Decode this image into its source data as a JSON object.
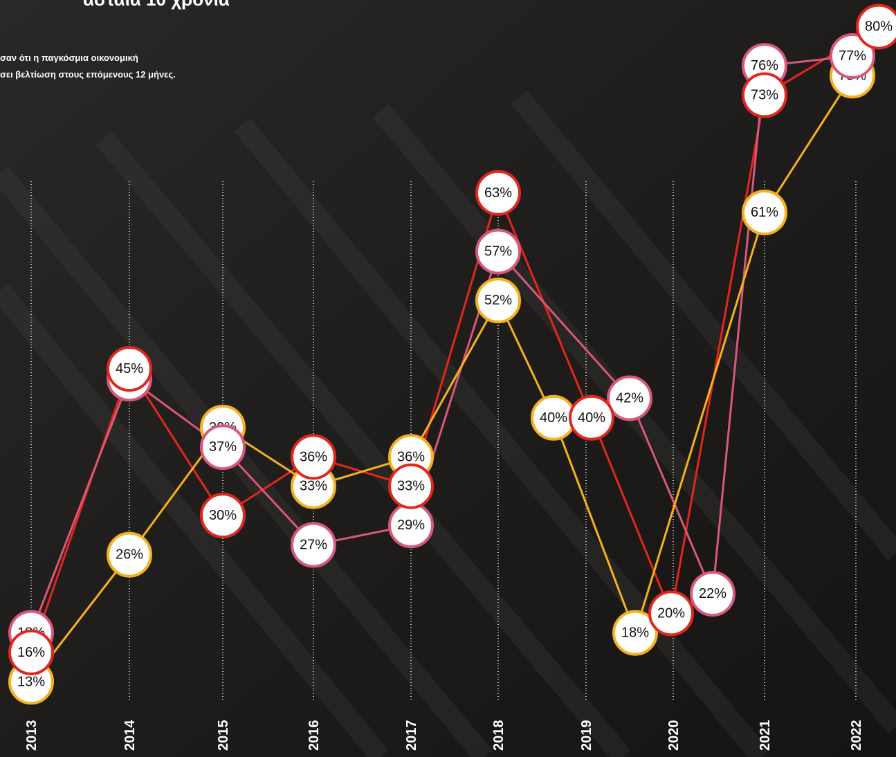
{
  "chart_data": {
    "type": "line",
    "title": "ασταία 10 χρόνια",
    "subtitle": [
      "σαν ότι η παγκόσμια οικονομική",
      "σει βελτίωση στους επόμενους 12 μήνες."
    ],
    "categories": [
      "2013",
      "2014",
      "2015",
      "2016",
      "2017",
      "2018",
      "2019",
      "2020",
      "2021",
      "2022"
    ],
    "series": [
      {
        "color": "#e3261c",
        "values": [
          16,
          45,
          30,
          36,
          33,
          63,
          40,
          20,
          73,
          80
        ],
        "value_labels": [
          "16%",
          "45%",
          "30%",
          "36%",
          "33%",
          "63%",
          "40%",
          "20%",
          "73%",
          "80%"
        ]
      },
      {
        "color": "#d9577a",
        "values": [
          18,
          44,
          37,
          27,
          29,
          57,
          42,
          22,
          76,
          77
        ],
        "value_labels": [
          "18%",
          "44%",
          "37%",
          "27%",
          "29%",
          "57%",
          "42%",
          "22%",
          "76%",
          "77%"
        ]
      },
      {
        "color": "#f6b21c",
        "values": [
          13,
          26,
          39,
          33,
          36,
          52,
          40,
          18,
          61,
          75
        ],
        "value_labels": [
          "13%",
          "26%",
          "39%",
          "33%",
          "36%",
          "52%",
          "40%",
          "18%",
          "61%",
          "75%"
        ]
      }
    ],
    "ylim": [
      0,
      100
    ]
  }
}
